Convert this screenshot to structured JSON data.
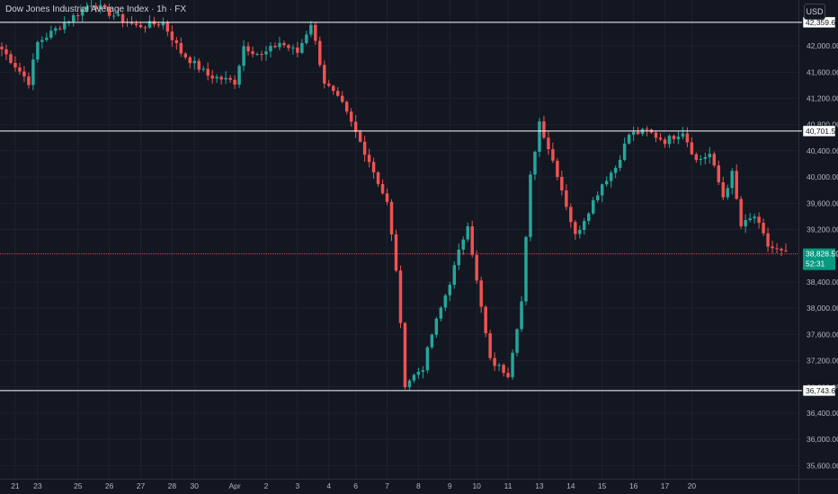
{
  "header": {
    "symbol_title": "Dow Jones Industrial Average Index · 1h · FX",
    "currency": "USD"
  },
  "colors": {
    "background": "#131722",
    "grid": "#1e222d",
    "up": "#26a69a",
    "down": "#ef5350",
    "level_line": "#ffffff",
    "price_line": "#ef5350",
    "last_price_tag": "#089981",
    "axis_text": "#b2b5be"
  },
  "chart_data": {
    "type": "candlestick",
    "title": "Dow Jones Industrial Average Index · 1h · FX",
    "y_axis": {
      "ylim": [
        35400,
        42700
      ],
      "tick_labels": [
        "42,000.00",
        "41,600.00",
        "41,200.00",
        "40,800.00",
        "40,400.00",
        "40,000.00",
        "39,600.00",
        "39,200.00",
        "38,400.00",
        "38,000.00",
        "37,600.00",
        "37,200.00",
        "36,800.00",
        "36,400.00",
        "36,000.00",
        "35,600.00"
      ],
      "tick_values": [
        42000,
        41600,
        41200,
        40800,
        40400,
        40000,
        39600,
        39200,
        38400,
        38000,
        37600,
        37200,
        36800,
        36400,
        36000,
        35600
      ]
    },
    "x_axis": {
      "tick_labels": [
        "21",
        "23",
        "25",
        "26",
        "27",
        "28",
        "30",
        "Apr",
        "2",
        "3",
        "4",
        "6",
        "7",
        "8",
        "9",
        "10",
        "11",
        "13",
        "14",
        "15",
        "16",
        "17",
        "20"
      ],
      "tick_index": [
        3,
        8,
        17,
        24,
        31,
        38,
        43,
        52,
        59,
        66,
        73,
        79,
        86,
        93,
        100,
        106,
        113,
        120,
        127,
        134,
        141,
        148,
        154
      ]
    },
    "candle_count": 160,
    "levels": [
      {
        "label": "42,359.60",
        "value": 42359.6
      },
      {
        "label": "40,701.55",
        "value": 40701.55
      },
      {
        "label": "36,743.61",
        "value": 36743.61
      }
    ],
    "last_price": {
      "label": "38,828.59",
      "value": 38828.59,
      "countdown": "52:31"
    },
    "key_points": [
      {
        "i": 0,
        "v": 41950
      },
      {
        "i": 6,
        "v": 41450
      },
      {
        "i": 8,
        "v": 42050
      },
      {
        "i": 12,
        "v": 42250
      },
      {
        "i": 20,
        "v": 42650
      },
      {
        "i": 24,
        "v": 42500
      },
      {
        "i": 30,
        "v": 42300
      },
      {
        "i": 36,
        "v": 42350
      },
      {
        "i": 40,
        "v": 41900
      },
      {
        "i": 46,
        "v": 41550
      },
      {
        "i": 52,
        "v": 41450
      },
      {
        "i": 54,
        "v": 42000
      },
      {
        "i": 58,
        "v": 41850
      },
      {
        "i": 62,
        "v": 42050
      },
      {
        "i": 66,
        "v": 41900
      },
      {
        "i": 69,
        "v": 42350
      },
      {
        "i": 72,
        "v": 41450
      },
      {
        "i": 76,
        "v": 41100
      },
      {
        "i": 82,
        "v": 40250
      },
      {
        "i": 86,
        "v": 39600
      },
      {
        "i": 88,
        "v": 38600
      },
      {
        "i": 90,
        "v": 36850
      },
      {
        "i": 94,
        "v": 37100
      },
      {
        "i": 96,
        "v": 37600
      },
      {
        "i": 100,
        "v": 38400
      },
      {
        "i": 104,
        "v": 39300
      },
      {
        "i": 106,
        "v": 38400
      },
      {
        "i": 109,
        "v": 37200
      },
      {
        "i": 113,
        "v": 37000
      },
      {
        "i": 116,
        "v": 38100
      },
      {
        "i": 118,
        "v": 40000
      },
      {
        "i": 120,
        "v": 40850
      },
      {
        "i": 124,
        "v": 40050
      },
      {
        "i": 128,
        "v": 39100
      },
      {
        "i": 131,
        "v": 39500
      },
      {
        "i": 134,
        "v": 39900
      },
      {
        "i": 137,
        "v": 40150
      },
      {
        "i": 140,
        "v": 40650
      },
      {
        "i": 144,
        "v": 40700
      },
      {
        "i": 148,
        "v": 40550
      },
      {
        "i": 152,
        "v": 40700
      },
      {
        "i": 155,
        "v": 40250
      },
      {
        "i": 158,
        "v": 40350
      },
      {
        "i": 161,
        "v": 39700
      },
      {
        "i": 163,
        "v": 40050
      },
      {
        "i": 165,
        "v": 39250
      },
      {
        "i": 168,
        "v": 39400
      },
      {
        "i": 171,
        "v": 38950
      },
      {
        "i": 174,
        "v": 38850
      }
    ]
  }
}
